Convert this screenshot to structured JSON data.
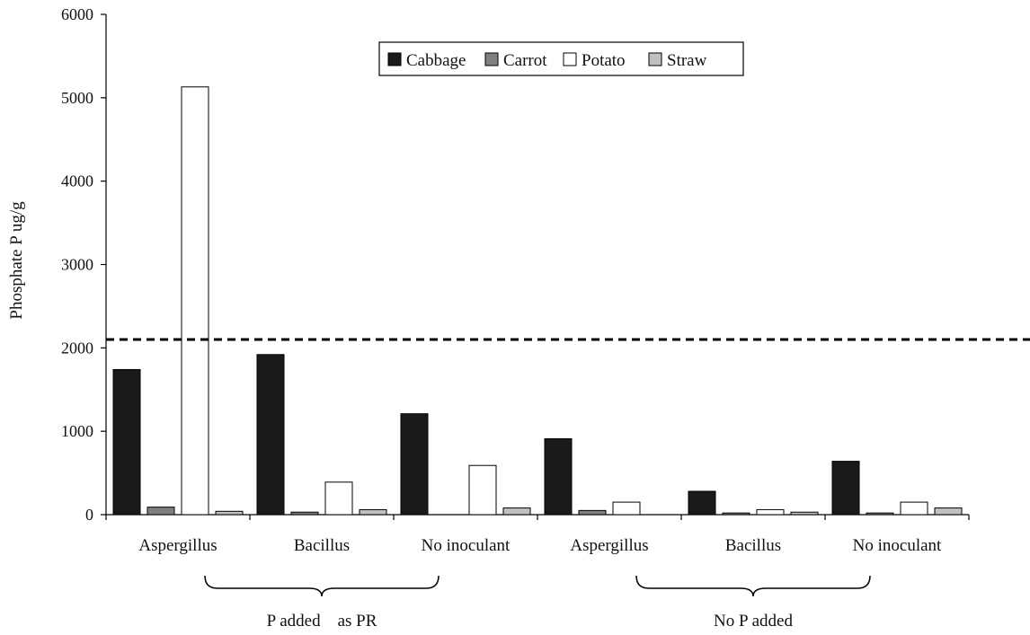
{
  "chart_data": {
    "type": "bar",
    "title": "",
    "ylabel": "Phosphate P ug/g",
    "xlabel": "",
    "ylim": [
      0,
      6000
    ],
    "yticks": [
      "0",
      "1000",
      "2000",
      "3000",
      "4000",
      "5000",
      "6000"
    ],
    "categories": [
      "Aspergillus",
      "Bacillus",
      "No inoculant",
      "Aspergillus",
      "Bacillus",
      "No inoculant"
    ],
    "groups": [
      {
        "label": "P added    as PR",
        "categories": [
          0,
          1,
          2
        ]
      },
      {
        "label": "No P added",
        "categories": [
          3,
          4,
          5
        ]
      }
    ],
    "series": [
      {
        "name": "Cabbage",
        "color": "#1a1a1a",
        "values": [
          1740,
          1920,
          1210,
          910,
          280,
          640
        ]
      },
      {
        "name": "Carrot",
        "color": "#808080",
        "values": [
          90,
          30,
          0,
          50,
          20,
          20
        ]
      },
      {
        "name": "Potato",
        "color": "#ffffff",
        "values": [
          5130,
          390,
          590,
          150,
          60,
          150
        ]
      },
      {
        "name": "Straw",
        "color": "#c0c0c0",
        "values": [
          40,
          60,
          80,
          0,
          30,
          80
        ]
      }
    ],
    "reference_line": {
      "value": 2100,
      "style": "dashed"
    },
    "legend": {
      "position": "top-right"
    },
    "grid": false
  }
}
